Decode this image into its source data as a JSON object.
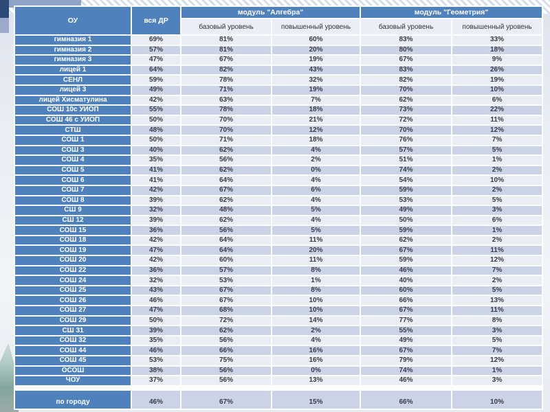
{
  "slide": {
    "type": "presentation-table-slide"
  },
  "colors": {
    "accent_blue": "#4f81bd",
    "band_light": "#e9edf4",
    "band_dark": "#cbd4e6",
    "subheader_bg": "#eaeef6",
    "corner_navy": "#2e4a76",
    "teal_shape": "#83a5a0"
  },
  "table": {
    "col_headers": {
      "school": "ОУ",
      "all_dr": "вся ДР",
      "algebra_module": "модуль \"Алгебра\"",
      "geometry_module": "модуль \"Геометрия\"",
      "algebra_basic": "базовый уровень",
      "algebra_advanced": "повышенный уровень",
      "geometry_basic": "базовый уровень",
      "geometry_advanced": "повышенный уровень"
    },
    "rows": [
      {
        "name": "гимназия 1",
        "values": [
          "69%",
          "81%",
          "60%",
          "83%",
          "33%"
        ]
      },
      {
        "name": "гимназия 2",
        "values": [
          "57%",
          "81%",
          "20%",
          "80%",
          "18%"
        ]
      },
      {
        "name": "гимназия 3",
        "values": [
          "47%",
          "67%",
          "19%",
          "67%",
          "9%"
        ]
      },
      {
        "name": "лицей 1",
        "values": [
          "64%",
          "82%",
          "43%",
          "83%",
          "26%"
        ]
      },
      {
        "name": "СЕНЛ",
        "values": [
          "59%",
          "78%",
          "32%",
          "82%",
          "19%"
        ]
      },
      {
        "name": "лицей 3",
        "values": [
          "49%",
          "71%",
          "19%",
          "70%",
          "10%"
        ]
      },
      {
        "name": "лицей Хисматулина",
        "values": [
          "42%",
          "63%",
          "7%",
          "62%",
          "6%"
        ]
      },
      {
        "name": "СОШ 10с УИОП",
        "values": [
          "55%",
          "78%",
          "18%",
          "73%",
          "22%"
        ]
      },
      {
        "name": "СОШ 46 с УИОП",
        "values": [
          "50%",
          "70%",
          "21%",
          "72%",
          "11%"
        ]
      },
      {
        "name": "СТШ",
        "values": [
          "48%",
          "70%",
          "12%",
          "70%",
          "12%"
        ]
      },
      {
        "name": "СОШ 1",
        "values": [
          "50%",
          "71%",
          "18%",
          "76%",
          "7%"
        ]
      },
      {
        "name": "СОШ 3",
        "values": [
          "40%",
          "62%",
          "4%",
          "57%",
          "5%"
        ]
      },
      {
        "name": "СОШ 4",
        "values": [
          "35%",
          "56%",
          "2%",
          "51%",
          "1%"
        ]
      },
      {
        "name": "СОШ 5",
        "values": [
          "41%",
          "62%",
          "0%",
          "74%",
          "2%"
        ]
      },
      {
        "name": "СОШ 6",
        "values": [
          "41%",
          "64%",
          "4%",
          "54%",
          "10%"
        ]
      },
      {
        "name": "СОШ 7",
        "values": [
          "42%",
          "67%",
          "6%",
          "59%",
          "2%"
        ]
      },
      {
        "name": "СОШ 8",
        "values": [
          "39%",
          "62%",
          "4%",
          "53%",
          "5%"
        ]
      },
      {
        "name": "СШ 9",
        "values": [
          "32%",
          "48%",
          "5%",
          "49%",
          "3%"
        ]
      },
      {
        "name": "СШ 12",
        "values": [
          "39%",
          "62%",
          "4%",
          "50%",
          "6%"
        ]
      },
      {
        "name": "СОШ 15",
        "values": [
          "36%",
          "56%",
          "5%",
          "59%",
          "1%"
        ]
      },
      {
        "name": "СОШ 18",
        "values": [
          "42%",
          "64%",
          "11%",
          "62%",
          "2%"
        ]
      },
      {
        "name": "СОШ 19",
        "values": [
          "47%",
          "64%",
          "20%",
          "67%",
          "11%"
        ]
      },
      {
        "name": "СОШ 20",
        "values": [
          "42%",
          "60%",
          "11%",
          "59%",
          "12%"
        ]
      },
      {
        "name": "СОШ 22",
        "values": [
          "36%",
          "57%",
          "8%",
          "46%",
          "7%"
        ]
      },
      {
        "name": "СОШ 24",
        "values": [
          "32%",
          "53%",
          "1%",
          "40%",
          "2%"
        ]
      },
      {
        "name": "СОШ 25",
        "values": [
          "43%",
          "67%",
          "8%",
          "60%",
          "5%"
        ]
      },
      {
        "name": "СОШ 26",
        "values": [
          "46%",
          "67%",
          "10%",
          "66%",
          "13%"
        ]
      },
      {
        "name": "СОШ 27",
        "values": [
          "47%",
          "68%",
          "10%",
          "67%",
          "11%"
        ]
      },
      {
        "name": "СОШ 29",
        "values": [
          "50%",
          "72%",
          "14%",
          "77%",
          "8%"
        ]
      },
      {
        "name": "СШ 31",
        "values": [
          "39%",
          "62%",
          "2%",
          "55%",
          "3%"
        ]
      },
      {
        "name": "СОШ 32",
        "values": [
          "35%",
          "56%",
          "4%",
          "49%",
          "5%"
        ]
      },
      {
        "name": "СОШ 44",
        "values": [
          "46%",
          "66%",
          "16%",
          "67%",
          "7%"
        ]
      },
      {
        "name": "СОШ 45",
        "values": [
          "53%",
          "75%",
          "16%",
          "79%",
          "12%"
        ]
      },
      {
        "name": "ОСОШ",
        "values": [
          "38%",
          "56%",
          "0%",
          "74%",
          "1%"
        ]
      },
      {
        "name": "ЧОУ",
        "values": [
          "37%",
          "56%",
          "13%",
          "46%",
          "3%"
        ]
      }
    ],
    "summary": {
      "name": "по городу",
      "values": [
        "46%",
        "67%",
        "15%",
        "66%",
        "10%"
      ]
    }
  },
  "chart_data": {
    "type": "table",
    "title": "",
    "columns": [
      "ОУ",
      "вся ДР",
      "модуль \"Алгебра\" — базовый уровень",
      "модуль \"Алгебра\" — повышенный уровень",
      "модуль \"Геометрия\" — базовый уровень",
      "модуль \"Геометрия\" — повышенный уровень"
    ],
    "rows": [
      [
        "гимназия 1",
        "69%",
        "81%",
        "60%",
        "83%",
        "33%"
      ],
      [
        "гимназия 2",
        "57%",
        "81%",
        "20%",
        "80%",
        "18%"
      ],
      [
        "гимназия 3",
        "47%",
        "67%",
        "19%",
        "67%",
        "9%"
      ],
      [
        "лицей 1",
        "64%",
        "82%",
        "43%",
        "83%",
        "26%"
      ],
      [
        "СЕНЛ",
        "59%",
        "78%",
        "32%",
        "82%",
        "19%"
      ],
      [
        "лицей 3",
        "49%",
        "71%",
        "19%",
        "70%",
        "10%"
      ],
      [
        "лицей Хисматулина",
        "42%",
        "63%",
        "7%",
        "62%",
        "6%"
      ],
      [
        "СОШ 10с УИОП",
        "55%",
        "78%",
        "18%",
        "73%",
        "22%"
      ],
      [
        "СОШ 46 с УИОП",
        "50%",
        "70%",
        "21%",
        "72%",
        "11%"
      ],
      [
        "СТШ",
        "48%",
        "70%",
        "12%",
        "70%",
        "12%"
      ],
      [
        "СОШ 1",
        "50%",
        "71%",
        "18%",
        "76%",
        "7%"
      ],
      [
        "СОШ 3",
        "40%",
        "62%",
        "4%",
        "57%",
        "5%"
      ],
      [
        "СОШ 4",
        "35%",
        "56%",
        "2%",
        "51%",
        "1%"
      ],
      [
        "СОШ 5",
        "41%",
        "62%",
        "0%",
        "74%",
        "2%"
      ],
      [
        "СОШ 6",
        "41%",
        "64%",
        "4%",
        "54%",
        "10%"
      ],
      [
        "СОШ 7",
        "42%",
        "67%",
        "6%",
        "59%",
        "2%"
      ],
      [
        "СОШ 8",
        "39%",
        "62%",
        "4%",
        "53%",
        "5%"
      ],
      [
        "СШ 9",
        "32%",
        "48%",
        "5%",
        "49%",
        "3%"
      ],
      [
        "СШ 12",
        "39%",
        "62%",
        "4%",
        "50%",
        "6%"
      ],
      [
        "СОШ 15",
        "36%",
        "56%",
        "5%",
        "59%",
        "1%"
      ],
      [
        "СОШ 18",
        "42%",
        "64%",
        "11%",
        "62%",
        "2%"
      ],
      [
        "СОШ 19",
        "47%",
        "64%",
        "20%",
        "67%",
        "11%"
      ],
      [
        "СОШ 20",
        "42%",
        "60%",
        "11%",
        "59%",
        "12%"
      ],
      [
        "СОШ 22",
        "36%",
        "57%",
        "8%",
        "46%",
        "7%"
      ],
      [
        "СОШ 24",
        "32%",
        "53%",
        "1%",
        "40%",
        "2%"
      ],
      [
        "СОШ 25",
        "43%",
        "67%",
        "8%",
        "60%",
        "5%"
      ],
      [
        "СОШ 26",
        "46%",
        "67%",
        "10%",
        "66%",
        "13%"
      ],
      [
        "СОШ 27",
        "47%",
        "68%",
        "10%",
        "67%",
        "11%"
      ],
      [
        "СОШ 29",
        "50%",
        "72%",
        "14%",
        "77%",
        "8%"
      ],
      [
        "СШ 31",
        "39%",
        "62%",
        "2%",
        "55%",
        "3%"
      ],
      [
        "СОШ 32",
        "35%",
        "56%",
        "4%",
        "49%",
        "5%"
      ],
      [
        "СОШ 44",
        "46%",
        "66%",
        "16%",
        "67%",
        "7%"
      ],
      [
        "СОШ 45",
        "53%",
        "75%",
        "16%",
        "79%",
        "12%"
      ],
      [
        "ОСОШ",
        "38%",
        "56%",
        "0%",
        "74%",
        "1%"
      ],
      [
        "ЧОУ",
        "37%",
        "56%",
        "13%",
        "46%",
        "3%"
      ],
      [
        "по городу",
        "46%",
        "67%",
        "15%",
        "66%",
        "10%"
      ]
    ]
  }
}
